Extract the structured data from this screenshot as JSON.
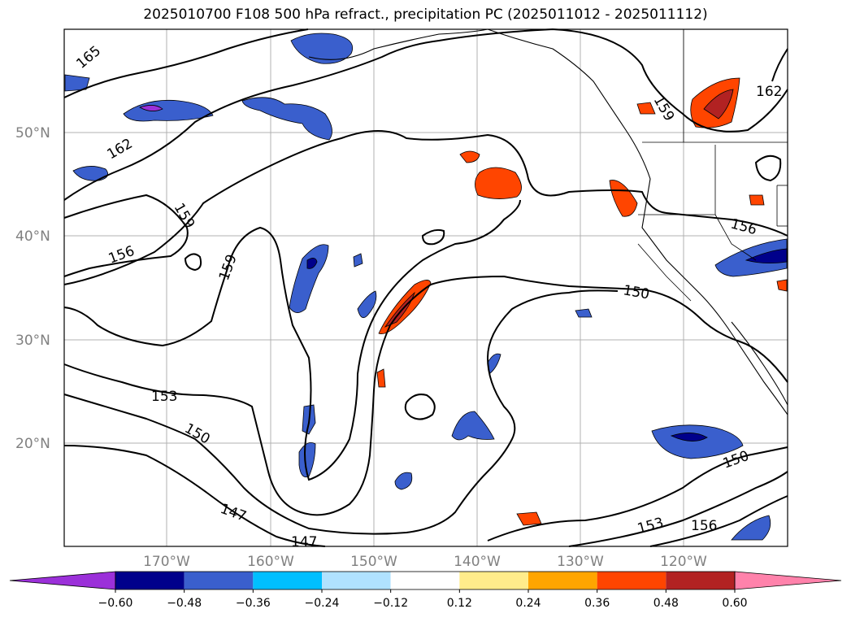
{
  "title": "2025010700 F108 500 hPa refract., precipitation PC (2025011012 - 2025011112)",
  "map": {
    "lat_ticks": [
      "50°N",
      "40°N",
      "30°N",
      "20°N"
    ],
    "lon_ticks": [
      "170°W",
      "160°W",
      "150°W",
      "140°W",
      "130°W",
      "120°W"
    ],
    "contour_labels": [
      "165",
      "162",
      "159",
      "156",
      "159",
      "162",
      "159",
      "156",
      "150",
      "153",
      "150",
      "147",
      "147",
      "150",
      "153",
      "156"
    ]
  },
  "colorbar": {
    "ticks": [
      "−0.60",
      "−0.48",
      "−0.36",
      "−0.24",
      "−0.12",
      "0.12",
      "0.24",
      "0.36",
      "0.48",
      "0.60"
    ],
    "colors": [
      "#9b30d9",
      "#00008b",
      "#3a5fcd",
      "#00bfff",
      "#b0e2ff",
      "#ffffff",
      "#ffec8b",
      "#ffa500",
      "#ff4500",
      "#b22222",
      "#ff82ab"
    ]
  }
}
